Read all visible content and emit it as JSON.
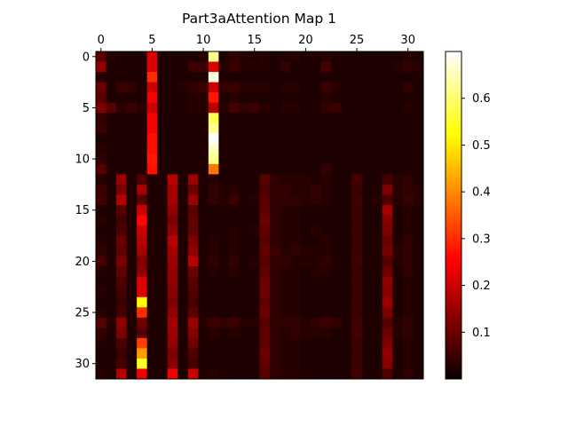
{
  "chart_data": {
    "type": "heatmap",
    "title": "Part3aAttention Map 1",
    "colormap": "hot",
    "rows": 32,
    "cols": 32,
    "x_ticks": [
      0,
      5,
      10,
      15,
      20,
      25,
      30
    ],
    "y_ticks": [
      0,
      5,
      10,
      15,
      20,
      25,
      30
    ],
    "x_axis_position": "top",
    "colorbar": {
      "position": "right",
      "range": [
        0.0,
        0.7
      ],
      "ticks": [
        0.1,
        0.2,
        0.3,
        0.4,
        0.5,
        0.6
      ],
      "tick_labels": [
        "0.1",
        "0.2",
        "0.3",
        "0.4",
        "0.5",
        "0.6"
      ]
    },
    "vmin": 0.0,
    "vmax": 0.7,
    "rows_values": [
      [
        0.08,
        0.03,
        0.02,
        0.02,
        0.02,
        0.22,
        0.02,
        0.02,
        0.02,
        0.02,
        0.03,
        0.62,
        0.02,
        0.04,
        0.03,
        0.02,
        0.03,
        0.02,
        0.02,
        0.03,
        0.02,
        0.02,
        0.03,
        0.02,
        0.02,
        0.02,
        0.02,
        0.02,
        0.02,
        0.02,
        0.03,
        0.02
      ],
      [
        0.14,
        0.02,
        0.02,
        0.02,
        0.02,
        0.22,
        0.02,
        0.02,
        0.02,
        0.05,
        0.05,
        0.22,
        0.03,
        0.05,
        0.03,
        0.03,
        0.03,
        0.02,
        0.04,
        0.02,
        0.02,
        0.02,
        0.06,
        0.02,
        0.02,
        0.02,
        0.02,
        0.02,
        0.02,
        0.03,
        0.04,
        0.03
      ],
      [
        0.03,
        0.02,
        0.02,
        0.02,
        0.02,
        0.3,
        0.02,
        0.02,
        0.02,
        0.02,
        0.02,
        0.68,
        0.02,
        0.02,
        0.02,
        0.02,
        0.02,
        0.02,
        0.02,
        0.02,
        0.02,
        0.02,
        0.02,
        0.02,
        0.02,
        0.02,
        0.02,
        0.02,
        0.02,
        0.02,
        0.02,
        0.02
      ],
      [
        0.1,
        0.02,
        0.05,
        0.04,
        0.02,
        0.2,
        0.02,
        0.02,
        0.03,
        0.04,
        0.05,
        0.2,
        0.04,
        0.05,
        0.03,
        0.03,
        0.03,
        0.02,
        0.03,
        0.03,
        0.02,
        0.02,
        0.05,
        0.03,
        0.02,
        0.02,
        0.02,
        0.02,
        0.02,
        0.02,
        0.04,
        0.02
      ],
      [
        0.08,
        0.02,
        0.02,
        0.02,
        0.02,
        0.25,
        0.02,
        0.02,
        0.02,
        0.03,
        0.03,
        0.28,
        0.02,
        0.03,
        0.02,
        0.02,
        0.02,
        0.02,
        0.02,
        0.02,
        0.02,
        0.02,
        0.03,
        0.02,
        0.02,
        0.02,
        0.02,
        0.02,
        0.02,
        0.02,
        0.02,
        0.02
      ],
      [
        0.12,
        0.08,
        0.03,
        0.05,
        0.03,
        0.2,
        0.02,
        0.02,
        0.02,
        0.03,
        0.03,
        0.18,
        0.03,
        0.06,
        0.04,
        0.05,
        0.03,
        0.02,
        0.03,
        0.03,
        0.02,
        0.02,
        0.04,
        0.05,
        0.02,
        0.02,
        0.02,
        0.02,
        0.02,
        0.02,
        0.03,
        0.02
      ],
      [
        0.04,
        0.02,
        0.02,
        0.02,
        0.02,
        0.25,
        0.02,
        0.02,
        0.02,
        0.02,
        0.02,
        0.58,
        0.02,
        0.02,
        0.02,
        0.02,
        0.02,
        0.02,
        0.02,
        0.02,
        0.02,
        0.02,
        0.02,
        0.02,
        0.02,
        0.02,
        0.02,
        0.02,
        0.02,
        0.02,
        0.02,
        0.02
      ],
      [
        0.05,
        0.02,
        0.02,
        0.02,
        0.02,
        0.25,
        0.02,
        0.02,
        0.02,
        0.02,
        0.02,
        0.62,
        0.02,
        0.02,
        0.02,
        0.02,
        0.02,
        0.02,
        0.02,
        0.02,
        0.02,
        0.02,
        0.02,
        0.02,
        0.02,
        0.02,
        0.02,
        0.02,
        0.02,
        0.02,
        0.02,
        0.02
      ],
      [
        0.02,
        0.02,
        0.02,
        0.02,
        0.02,
        0.27,
        0.02,
        0.02,
        0.02,
        0.02,
        0.02,
        0.7,
        0.02,
        0.02,
        0.02,
        0.02,
        0.02,
        0.02,
        0.02,
        0.02,
        0.02,
        0.02,
        0.02,
        0.02,
        0.02,
        0.02,
        0.02,
        0.02,
        0.02,
        0.02,
        0.02,
        0.02
      ],
      [
        0.03,
        0.02,
        0.02,
        0.02,
        0.02,
        0.27,
        0.02,
        0.02,
        0.02,
        0.02,
        0.02,
        0.66,
        0.02,
        0.02,
        0.02,
        0.02,
        0.02,
        0.02,
        0.02,
        0.02,
        0.02,
        0.02,
        0.02,
        0.02,
        0.02,
        0.02,
        0.02,
        0.02,
        0.02,
        0.02,
        0.02,
        0.02
      ],
      [
        0.04,
        0.02,
        0.02,
        0.02,
        0.02,
        0.28,
        0.02,
        0.02,
        0.02,
        0.02,
        0.02,
        0.62,
        0.02,
        0.02,
        0.02,
        0.02,
        0.02,
        0.02,
        0.02,
        0.02,
        0.02,
        0.02,
        0.02,
        0.02,
        0.02,
        0.02,
        0.02,
        0.02,
        0.02,
        0.02,
        0.02,
        0.02
      ],
      [
        0.08,
        0.02,
        0.02,
        0.02,
        0.02,
        0.27,
        0.02,
        0.02,
        0.02,
        0.02,
        0.02,
        0.38,
        0.02,
        0.02,
        0.02,
        0.02,
        0.02,
        0.02,
        0.02,
        0.02,
        0.02,
        0.02,
        0.04,
        0.02,
        0.02,
        0.02,
        0.02,
        0.02,
        0.02,
        0.02,
        0.02,
        0.02
      ],
      [
        0.03,
        0.02,
        0.15,
        0.02,
        0.07,
        0.02,
        0.02,
        0.18,
        0.02,
        0.15,
        0.02,
        0.03,
        0.02,
        0.02,
        0.02,
        0.02,
        0.08,
        0.04,
        0.03,
        0.03,
        0.03,
        0.02,
        0.03,
        0.02,
        0.02,
        0.06,
        0.02,
        0.02,
        0.06,
        0.03,
        0.04,
        0.02
      ],
      [
        0.05,
        0.02,
        0.12,
        0.02,
        0.16,
        0.02,
        0.02,
        0.16,
        0.02,
        0.1,
        0.02,
        0.04,
        0.03,
        0.03,
        0.02,
        0.02,
        0.07,
        0.04,
        0.04,
        0.03,
        0.03,
        0.04,
        0.03,
        0.02,
        0.02,
        0.05,
        0.02,
        0.02,
        0.12,
        0.03,
        0.04,
        0.03
      ],
      [
        0.06,
        0.02,
        0.18,
        0.02,
        0.08,
        0.02,
        0.02,
        0.16,
        0.02,
        0.15,
        0.02,
        0.04,
        0.03,
        0.05,
        0.02,
        0.03,
        0.08,
        0.04,
        0.04,
        0.04,
        0.03,
        0.04,
        0.03,
        0.02,
        0.02,
        0.06,
        0.02,
        0.03,
        0.07,
        0.03,
        0.05,
        0.03
      ],
      [
        0.02,
        0.02,
        0.08,
        0.02,
        0.2,
        0.02,
        0.02,
        0.14,
        0.02,
        0.08,
        0.02,
        0.02,
        0.02,
        0.02,
        0.02,
        0.02,
        0.09,
        0.04,
        0.03,
        0.03,
        0.02,
        0.02,
        0.02,
        0.02,
        0.02,
        0.05,
        0.02,
        0.02,
        0.16,
        0.02,
        0.03,
        0.02
      ],
      [
        0.03,
        0.02,
        0.06,
        0.02,
        0.26,
        0.02,
        0.02,
        0.12,
        0.02,
        0.09,
        0.02,
        0.02,
        0.02,
        0.02,
        0.02,
        0.02,
        0.1,
        0.04,
        0.03,
        0.03,
        0.02,
        0.02,
        0.02,
        0.02,
        0.02,
        0.05,
        0.02,
        0.02,
        0.13,
        0.02,
        0.03,
        0.02
      ],
      [
        0.02,
        0.02,
        0.07,
        0.02,
        0.2,
        0.02,
        0.02,
        0.14,
        0.02,
        0.09,
        0.02,
        0.02,
        0.02,
        0.03,
        0.02,
        0.03,
        0.09,
        0.04,
        0.03,
        0.03,
        0.02,
        0.03,
        0.02,
        0.02,
        0.02,
        0.05,
        0.02,
        0.02,
        0.12,
        0.02,
        0.03,
        0.02
      ],
      [
        0.03,
        0.02,
        0.1,
        0.02,
        0.18,
        0.02,
        0.02,
        0.18,
        0.02,
        0.12,
        0.02,
        0.03,
        0.02,
        0.03,
        0.02,
        0.02,
        0.08,
        0.04,
        0.03,
        0.03,
        0.02,
        0.02,
        0.03,
        0.02,
        0.02,
        0.05,
        0.02,
        0.02,
        0.1,
        0.02,
        0.04,
        0.02
      ],
      [
        0.04,
        0.02,
        0.09,
        0.02,
        0.16,
        0.02,
        0.02,
        0.16,
        0.02,
        0.14,
        0.02,
        0.03,
        0.02,
        0.03,
        0.02,
        0.02,
        0.09,
        0.05,
        0.03,
        0.04,
        0.03,
        0.03,
        0.03,
        0.02,
        0.02,
        0.05,
        0.02,
        0.02,
        0.11,
        0.03,
        0.04,
        0.02
      ],
      [
        0.06,
        0.02,
        0.12,
        0.02,
        0.12,
        0.02,
        0.02,
        0.15,
        0.02,
        0.18,
        0.02,
        0.04,
        0.02,
        0.04,
        0.02,
        0.03,
        0.08,
        0.04,
        0.04,
        0.03,
        0.03,
        0.03,
        0.04,
        0.02,
        0.02,
        0.06,
        0.02,
        0.02,
        0.08,
        0.03,
        0.04,
        0.02
      ],
      [
        0.03,
        0.02,
        0.09,
        0.02,
        0.14,
        0.02,
        0.02,
        0.14,
        0.02,
        0.1,
        0.02,
        0.03,
        0.02,
        0.03,
        0.02,
        0.02,
        0.09,
        0.04,
        0.03,
        0.03,
        0.02,
        0.03,
        0.03,
        0.02,
        0.02,
        0.05,
        0.02,
        0.02,
        0.1,
        0.02,
        0.04,
        0.02
      ],
      [
        0.02,
        0.02,
        0.07,
        0.02,
        0.22,
        0.02,
        0.02,
        0.14,
        0.02,
        0.08,
        0.02,
        0.02,
        0.02,
        0.02,
        0.02,
        0.02,
        0.1,
        0.04,
        0.03,
        0.03,
        0.02,
        0.02,
        0.02,
        0.02,
        0.02,
        0.05,
        0.02,
        0.02,
        0.14,
        0.02,
        0.03,
        0.02
      ],
      [
        0.03,
        0.02,
        0.06,
        0.02,
        0.22,
        0.02,
        0.02,
        0.13,
        0.02,
        0.07,
        0.02,
        0.02,
        0.02,
        0.02,
        0.02,
        0.02,
        0.1,
        0.04,
        0.03,
        0.03,
        0.02,
        0.02,
        0.02,
        0.02,
        0.02,
        0.05,
        0.02,
        0.02,
        0.13,
        0.02,
        0.03,
        0.02
      ],
      [
        0.02,
        0.02,
        0.05,
        0.02,
        0.52,
        0.02,
        0.02,
        0.12,
        0.02,
        0.06,
        0.02,
        0.02,
        0.02,
        0.02,
        0.02,
        0.02,
        0.09,
        0.04,
        0.03,
        0.03,
        0.02,
        0.02,
        0.02,
        0.02,
        0.02,
        0.05,
        0.02,
        0.02,
        0.15,
        0.02,
        0.03,
        0.02
      ],
      [
        0.03,
        0.02,
        0.06,
        0.02,
        0.3,
        0.02,
        0.02,
        0.14,
        0.02,
        0.08,
        0.02,
        0.02,
        0.02,
        0.02,
        0.02,
        0.02,
        0.1,
        0.04,
        0.03,
        0.03,
        0.02,
        0.02,
        0.02,
        0.02,
        0.02,
        0.05,
        0.02,
        0.02,
        0.12,
        0.02,
        0.03,
        0.02
      ],
      [
        0.08,
        0.03,
        0.14,
        0.02,
        0.1,
        0.02,
        0.02,
        0.16,
        0.02,
        0.15,
        0.03,
        0.05,
        0.04,
        0.05,
        0.03,
        0.03,
        0.08,
        0.04,
        0.04,
        0.04,
        0.03,
        0.04,
        0.05,
        0.04,
        0.02,
        0.06,
        0.02,
        0.02,
        0.08,
        0.03,
        0.04,
        0.02
      ],
      [
        0.04,
        0.02,
        0.12,
        0.02,
        0.08,
        0.02,
        0.02,
        0.15,
        0.02,
        0.13,
        0.02,
        0.03,
        0.02,
        0.03,
        0.02,
        0.02,
        0.09,
        0.04,
        0.03,
        0.04,
        0.03,
        0.03,
        0.03,
        0.02,
        0.02,
        0.06,
        0.02,
        0.02,
        0.1,
        0.03,
        0.04,
        0.02
      ],
      [
        0.03,
        0.02,
        0.07,
        0.02,
        0.32,
        0.02,
        0.02,
        0.14,
        0.02,
        0.1,
        0.02,
        0.02,
        0.02,
        0.02,
        0.02,
        0.02,
        0.09,
        0.04,
        0.03,
        0.03,
        0.02,
        0.02,
        0.02,
        0.02,
        0.02,
        0.05,
        0.02,
        0.02,
        0.12,
        0.02,
        0.03,
        0.02
      ],
      [
        0.02,
        0.02,
        0.05,
        0.02,
        0.42,
        0.02,
        0.02,
        0.12,
        0.02,
        0.07,
        0.02,
        0.02,
        0.02,
        0.02,
        0.02,
        0.02,
        0.1,
        0.04,
        0.03,
        0.03,
        0.02,
        0.02,
        0.02,
        0.02,
        0.02,
        0.05,
        0.02,
        0.02,
        0.14,
        0.02,
        0.03,
        0.02
      ],
      [
        0.02,
        0.02,
        0.06,
        0.02,
        0.55,
        0.02,
        0.02,
        0.13,
        0.02,
        0.06,
        0.02,
        0.02,
        0.02,
        0.02,
        0.02,
        0.02,
        0.09,
        0.04,
        0.03,
        0.03,
        0.02,
        0.02,
        0.02,
        0.02,
        0.02,
        0.05,
        0.02,
        0.02,
        0.13,
        0.02,
        0.03,
        0.02
      ],
      [
        0.03,
        0.02,
        0.18,
        0.02,
        0.24,
        0.02,
        0.02,
        0.24,
        0.02,
        0.2,
        0.02,
        0.03,
        0.02,
        0.02,
        0.02,
        0.02,
        0.08,
        0.04,
        0.03,
        0.03,
        0.02,
        0.02,
        0.02,
        0.02,
        0.02,
        0.06,
        0.02,
        0.02,
        0.07,
        0.02,
        0.04,
        0.02
      ]
    ]
  }
}
